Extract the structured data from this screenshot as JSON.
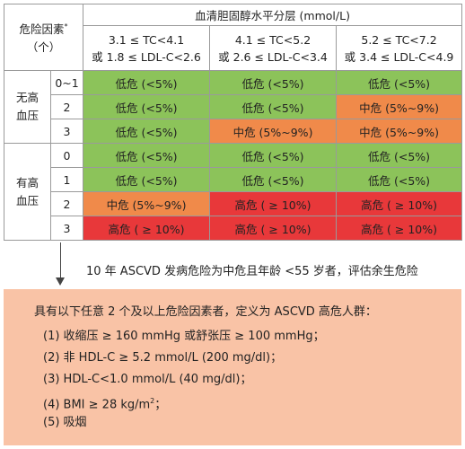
{
  "table": {
    "factor_header": "危险因素",
    "factor_header_mark": "*",
    "factor_header_unit": "（个）",
    "chol_header": "血清胆固醇水平分层 (mmol/L)",
    "columns": [
      {
        "line1": "3.1 ≤ TC<4.1",
        "line2": "或 1.8 ≤ LDL-C<2.6"
      },
      {
        "line1": "4.1 ≤ TC<5.2",
        "line2": "或 2.6 ≤ LDL-C<3.4"
      },
      {
        "line1": "5.2 ≤ TC<7.2",
        "line2": "或 3.4 ≤ LDL-C<4.9"
      }
    ],
    "groups": [
      {
        "label_line1": "无高",
        "label_line2": "血压",
        "rows": [
          {
            "count": "0~1",
            "cells": [
              "低危 (<5%)",
              "低危 (<5%)",
              "低危 (<5%)"
            ],
            "levels": [
              "low",
              "low",
              "low"
            ]
          },
          {
            "count": "2",
            "cells": [
              "低危 (<5%)",
              "低危 (<5%)",
              "中危 (5%~9%)"
            ],
            "levels": [
              "low",
              "low",
              "mid"
            ]
          },
          {
            "count": "3",
            "cells": [
              "低危 (<5%)",
              "中危 (5%~9%)",
              "中危 (5%~9%)"
            ],
            "levels": [
              "low",
              "mid",
              "mid"
            ]
          }
        ]
      },
      {
        "label_line1": "有高",
        "label_line2": "血压",
        "rows": [
          {
            "count": "0",
            "cells": [
              "低危 (<5%)",
              "低危 (<5%)",
              "低危 (<5%)"
            ],
            "levels": [
              "low",
              "low",
              "low"
            ]
          },
          {
            "count": "1",
            "cells": [
              "低危 (<5%)",
              "低危 (<5%)",
              "低危 (<5%)"
            ],
            "levels": [
              "low",
              "low",
              "low"
            ]
          },
          {
            "count": "2",
            "cells": [
              "中危 (5%~9%)",
              "高危 ( ≥ 10%)",
              "高危 ( ≥ 10%)"
            ],
            "levels": [
              "mid",
              "high",
              "high"
            ]
          },
          {
            "count": "3",
            "cells": [
              "高危 ( ≥ 10%)",
              "高危 ( ≥ 10%)",
              "高危 ( ≥ 10%)"
            ],
            "levels": [
              "high",
              "high",
              "high"
            ]
          }
        ]
      }
    ]
  },
  "colors": {
    "low": "#8cc35a",
    "mid": "#f08a4a",
    "high": "#e8383a",
    "box": "#f9c3a6"
  },
  "note": "10 年 ASCVD 发病危险为中危且年龄 <55 岁者，评估余生危险",
  "criteria": {
    "title": "具有以下任意 2 个及以上危险因素者，定义为 ASCVD 高危人群：",
    "items": [
      {
        "text": "(1) 收缩压 ≥ 160 mmHg 或舒张压 ≥ 100 mmHg；"
      },
      {
        "text": "(2) 非 HDL-C ≥ 5.2 mmol/L (200 mg/dl)；"
      },
      {
        "text": "(3) HDL-C<1.0 mmol/L (40 mg/dl)；"
      },
      {
        "text": "(4) BMI ≥ 28 kg/m",
        "sup": "2",
        "after": "；"
      },
      {
        "text": "(5) 吸烟"
      }
    ]
  }
}
